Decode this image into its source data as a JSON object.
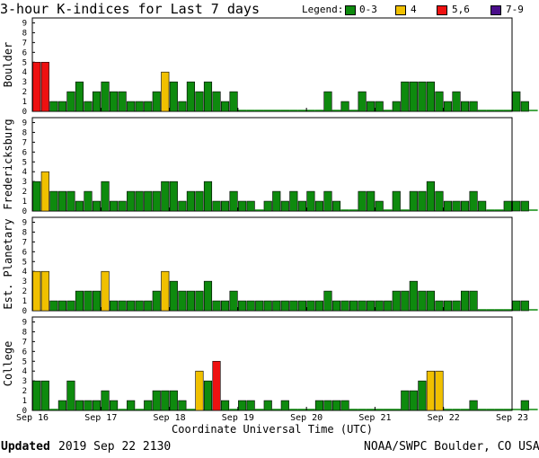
{
  "header": {
    "title": "3-hour K-indices for Last 7 days",
    "legend_label": "Legend:",
    "legend": [
      {
        "label": "0-3",
        "color": "#0e8a0e"
      },
      {
        "label": "4",
        "color": "#f0c000"
      },
      {
        "label": "5,6",
        "color": "#ee1111"
      },
      {
        "label": "7-9",
        "color": "#4a0e8a"
      }
    ]
  },
  "chart_data": {
    "type": "bar",
    "x_ticks": [
      "Sep 16",
      "Sep 17",
      "Sep 18",
      "Sep 19",
      "Sep 20",
      "Sep 21",
      "Sep 22",
      "Sep 23"
    ],
    "xlabel": "Coordinate Universal Time (UTC)",
    "ylim": [
      0,
      9
    ],
    "y_ticks": [
      0,
      1,
      2,
      3,
      4,
      5,
      6,
      7,
      8,
      9
    ],
    "intervals_per_day": 8,
    "panels": [
      {
        "name": "Boulder",
        "values": [
          5,
          5,
          1,
          1,
          2,
          3,
          1,
          2,
          3,
          2,
          2,
          1,
          1,
          1,
          2,
          4,
          3,
          1,
          3,
          2,
          3,
          2,
          1,
          2,
          0,
          0,
          0,
          0,
          0,
          0,
          0,
          0,
          0,
          0,
          2,
          0,
          1,
          0,
          2,
          1,
          1,
          0,
          1,
          3,
          3,
          3,
          3,
          2,
          1,
          2,
          1,
          1,
          0,
          0,
          0,
          0,
          2,
          1,
          0
        ]
      },
      {
        "name": "Fredericksburg",
        "values": [
          3,
          4,
          2,
          2,
          2,
          1,
          2,
          1,
          3,
          1,
          1,
          2,
          2,
          2,
          2,
          3,
          3,
          1,
          2,
          2,
          3,
          1,
          1,
          2,
          1,
          1,
          0,
          1,
          2,
          1,
          2,
          1,
          2,
          1,
          2,
          1,
          0,
          0,
          2,
          2,
          1,
          0,
          2,
          0,
          2,
          2,
          3,
          2,
          1,
          1,
          1,
          2,
          1,
          0,
          0,
          1,
          1,
          1,
          0
        ]
      },
      {
        "name": "Est. Planetary",
        "values": [
          4,
          4,
          1,
          1,
          1,
          2,
          2,
          2,
          4,
          1,
          1,
          1,
          1,
          1,
          2,
          4,
          3,
          2,
          2,
          2,
          3,
          1,
          1,
          2,
          1,
          1,
          1,
          1,
          1,
          1,
          1,
          1,
          1,
          1,
          2,
          1,
          1,
          1,
          1,
          1,
          1,
          1,
          2,
          2,
          3,
          2,
          2,
          1,
          1,
          1,
          2,
          2,
          0,
          0,
          0,
          0,
          1,
          1,
          0
        ]
      },
      {
        "name": "College",
        "values": [
          3,
          3,
          0,
          1,
          3,
          1,
          1,
          1,
          2,
          1,
          0,
          1,
          0,
          1,
          2,
          2,
          2,
          1,
          0,
          4,
          3,
          5,
          1,
          0,
          1,
          1,
          0,
          1,
          0,
          1,
          0,
          0,
          0,
          1,
          1,
          1,
          1,
          0,
          0,
          0,
          0,
          0,
          0,
          2,
          2,
          3,
          4,
          4,
          0,
          0,
          0,
          1,
          0,
          0,
          0,
          0,
          0,
          1,
          0
        ]
      }
    ]
  },
  "footer": {
    "updated_label": "Updated",
    "updated_value": "2019 Sep 22 2130",
    "source": "NOAA/SWPC Boulder, CO USA"
  }
}
